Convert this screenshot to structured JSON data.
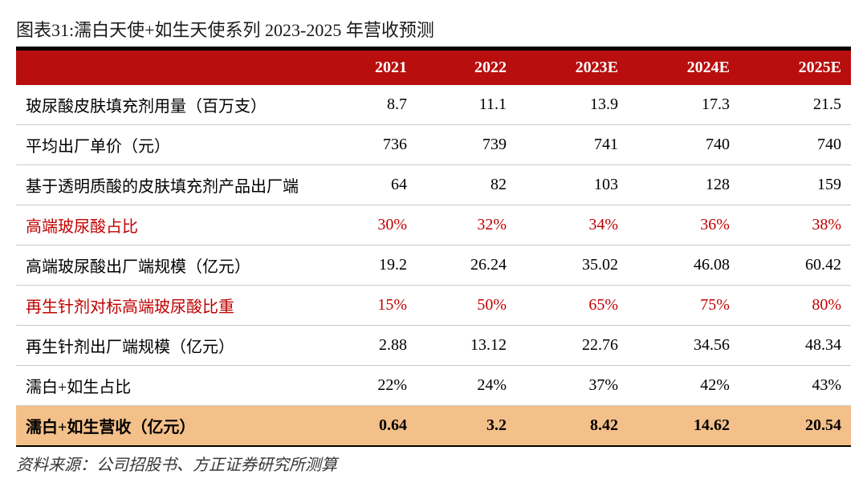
{
  "title": "图表31:濡白天使+如生天使系列 2023-2025 年营收预测",
  "source": "资料来源：公司招股书、方正证券研究所测算",
  "table": {
    "columns": [
      "",
      "2021",
      "2022",
      "2023E",
      "2024E",
      "2025E"
    ],
    "rows": [
      {
        "label": "玻尿酸皮肤填充剂用量（百万支）",
        "values": [
          "8.7",
          "11.1",
          "13.9",
          "17.3",
          "21.5"
        ],
        "style": "normal"
      },
      {
        "label": "平均出厂单价（元）",
        "values": [
          "736",
          "739",
          "741",
          "740",
          "740"
        ],
        "style": "normal"
      },
      {
        "label": "基于透明质酸的皮肤填充剂产品出厂端",
        "values": [
          "64",
          "82",
          "103",
          "128",
          "159"
        ],
        "style": "normal"
      },
      {
        "label": "高端玻尿酸占比",
        "values": [
          "30%",
          "32%",
          "34%",
          "36%",
          "38%"
        ],
        "style": "red"
      },
      {
        "label": "高端玻尿酸出厂端规模（亿元）",
        "values": [
          "19.2",
          "26.24",
          "35.02",
          "46.08",
          "60.42"
        ],
        "style": "normal"
      },
      {
        "label": "再生针剂对标高端玻尿酸比重",
        "values": [
          "15%",
          "50%",
          "65%",
          "75%",
          "80%"
        ],
        "style": "red"
      },
      {
        "label": "再生针剂出厂端规模（亿元）",
        "values": [
          "2.88",
          "13.12",
          "22.76",
          "34.56",
          "48.34"
        ],
        "style": "normal"
      },
      {
        "label": "濡白+如生占比",
        "values": [
          "22%",
          "24%",
          "37%",
          "42%",
          "43%"
        ],
        "style": "normal"
      },
      {
        "label": "濡白+如生营收（亿元）",
        "values": [
          "0.64",
          "3.2",
          "8.42",
          "14.62",
          "20.54"
        ],
        "style": "highlight"
      }
    ],
    "colors": {
      "header_bg": "#b80e0e",
      "header_text": "#ffffff",
      "red_text": "#c00000",
      "highlight_bg": "#f4c089",
      "row_border": "#c9c9c9",
      "table_border": "#000000"
    }
  }
}
